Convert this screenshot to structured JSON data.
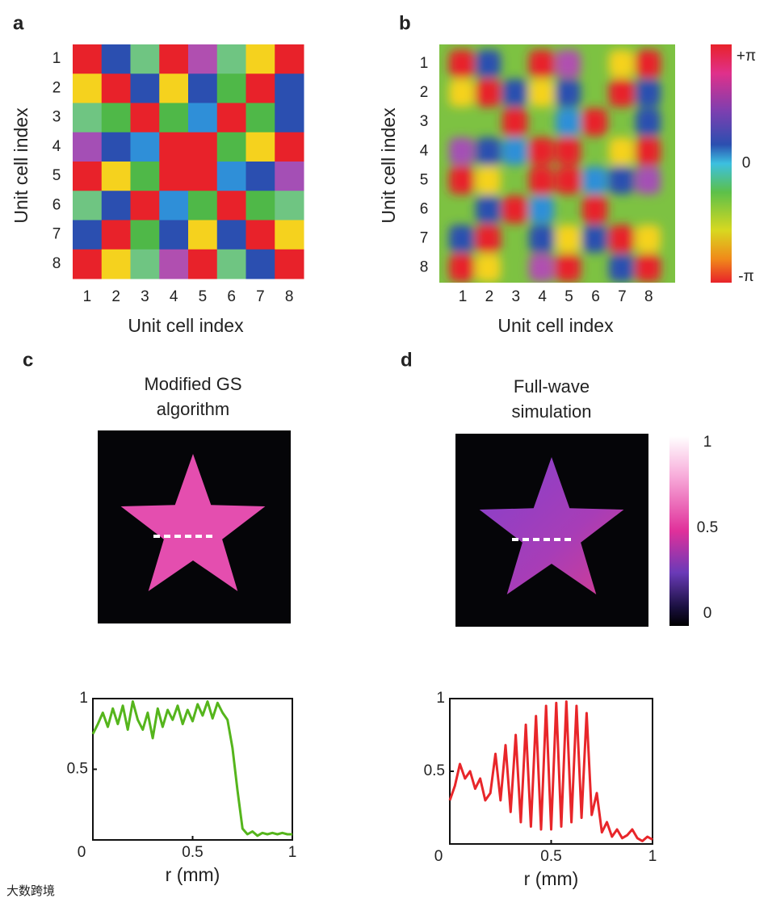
{
  "watermark": "大数跨境",
  "chart_data": [
    {
      "type": "heatmap",
      "label": "a",
      "xlabel": "Unit cell index",
      "ylabel": "Unit cell index",
      "categories": [
        "1",
        "2",
        "3",
        "4",
        "5",
        "6",
        "7",
        "8"
      ],
      "cells": [
        [
          "#e8222a",
          "#2b4fb0",
          "#6fc582",
          "#e8222a",
          "#b04fb0",
          "#6fc582",
          "#f5d21e",
          "#e8222a"
        ],
        [
          "#f5d21e",
          "#e8222a",
          "#2b4fb0",
          "#f5d21e",
          "#2b4fb0",
          "#4fb848",
          "#e8222a",
          "#2b4fb0"
        ],
        [
          "#6fc582",
          "#4fb848",
          "#e8222a",
          "#4fb848",
          "#2f8fd8",
          "#e8222a",
          "#4fb848",
          "#2b4fb0"
        ],
        [
          "#a44fb5",
          "#2b4fb0",
          "#2f8fd8",
          "#e8222a",
          "#e8222a",
          "#4fb848",
          "#f5d21e",
          "#e8222a"
        ],
        [
          "#e8222a",
          "#f5d21e",
          "#4fb848",
          "#e8222a",
          "#e8222a",
          "#2f8fd8",
          "#2b4fb0",
          "#a44fb5"
        ],
        [
          "#6fc582",
          "#2b4fb0",
          "#e8222a",
          "#2f8fd8",
          "#4fb848",
          "#e8222a",
          "#4fb848",
          "#6fc582"
        ],
        [
          "#2b4fb0",
          "#e8222a",
          "#4fb848",
          "#2b4fb0",
          "#f5d21e",
          "#2b4fb0",
          "#e8222a",
          "#f5d21e"
        ],
        [
          "#e8222a",
          "#f5d21e",
          "#6fc582",
          "#b04fb0",
          "#e8222a",
          "#6fc582",
          "#2b4fb0",
          "#e8222a"
        ]
      ]
    },
    {
      "type": "phase-map",
      "label": "b",
      "xlabel": "Unit cell index",
      "ylabel": "Unit cell index",
      "categories": [
        "1",
        "2",
        "3",
        "4",
        "5",
        "6",
        "7",
        "8"
      ],
      "clim": [
        -1,
        1
      ],
      "cticks": [
        {
          "value": 1,
          "label": "+π"
        },
        0,
        {
          "value": -1,
          "label": "-π"
        }
      ]
    },
    {
      "type": "image",
      "label": "c",
      "title": [
        "Modified GS",
        "algorithm"
      ],
      "color": "#f052b8"
    },
    {
      "type": "image",
      "label": "d",
      "title": [
        "Full-wave",
        "simulation"
      ],
      "color": "#b04ad0",
      "clim": [
        0,
        1
      ],
      "cticks": [
        1,
        0.5,
        0
      ]
    },
    {
      "type": "line",
      "xlabel": "r (mm)",
      "xlim": [
        0,
        1
      ],
      "ylim": [
        0,
        1
      ],
      "xticks": [
        0,
        0.5,
        1
      ],
      "yticks": [
        0.5,
        1
      ],
      "x": [
        0,
        0.025,
        0.05,
        0.075,
        0.1,
        0.125,
        0.15,
        0.175,
        0.2,
        0.225,
        0.25,
        0.275,
        0.3,
        0.325,
        0.35,
        0.375,
        0.4,
        0.425,
        0.45,
        0.475,
        0.5,
        0.525,
        0.55,
        0.575,
        0.6,
        0.625,
        0.65,
        0.675,
        0.7,
        0.725,
        0.75,
        0.775,
        0.8,
        0.825,
        0.85,
        0.875,
        0.9,
        0.925,
        0.95,
        0.975,
        1
      ],
      "series": [
        {
          "color": "#55b51c",
          "values": [
            0.75,
            0.82,
            0.9,
            0.8,
            0.93,
            0.82,
            0.95,
            0.78,
            0.98,
            0.85,
            0.78,
            0.9,
            0.72,
            0.93,
            0.8,
            0.92,
            0.85,
            0.95,
            0.82,
            0.92,
            0.84,
            0.96,
            0.88,
            0.98,
            0.86,
            0.97,
            0.9,
            0.85,
            0.65,
            0.35,
            0.08,
            0.04,
            0.06,
            0.03,
            0.05,
            0.04,
            0.05,
            0.04,
            0.05,
            0.04,
            0.04
          ]
        }
      ]
    },
    {
      "type": "line",
      "xlabel": "r (mm)",
      "xlim": [
        0,
        1
      ],
      "ylim": [
        0,
        1
      ],
      "xticks": [
        0,
        0.5,
        1
      ],
      "yticks": [
        0.5,
        1
      ],
      "x": [
        0,
        0.025,
        0.05,
        0.075,
        0.1,
        0.125,
        0.15,
        0.175,
        0.2,
        0.225,
        0.25,
        0.275,
        0.3,
        0.325,
        0.35,
        0.375,
        0.4,
        0.425,
        0.45,
        0.475,
        0.5,
        0.525,
        0.55,
        0.575,
        0.6,
        0.625,
        0.65,
        0.675,
        0.7,
        0.725,
        0.75,
        0.775,
        0.8,
        0.825,
        0.85,
        0.875,
        0.9,
        0.925,
        0.95,
        0.975,
        1
      ],
      "series": [
        {
          "color": "#e8262a",
          "values": [
            0.3,
            0.4,
            0.55,
            0.45,
            0.5,
            0.38,
            0.45,
            0.3,
            0.35,
            0.62,
            0.3,
            0.68,
            0.22,
            0.75,
            0.15,
            0.82,
            0.12,
            0.88,
            0.1,
            0.95,
            0.1,
            0.97,
            0.12,
            0.98,
            0.15,
            0.95,
            0.18,
            0.9,
            0.2,
            0.35,
            0.08,
            0.15,
            0.05,
            0.1,
            0.04,
            0.06,
            0.1,
            0.04,
            0.02,
            0.05,
            0.03
          ]
        }
      ]
    }
  ]
}
